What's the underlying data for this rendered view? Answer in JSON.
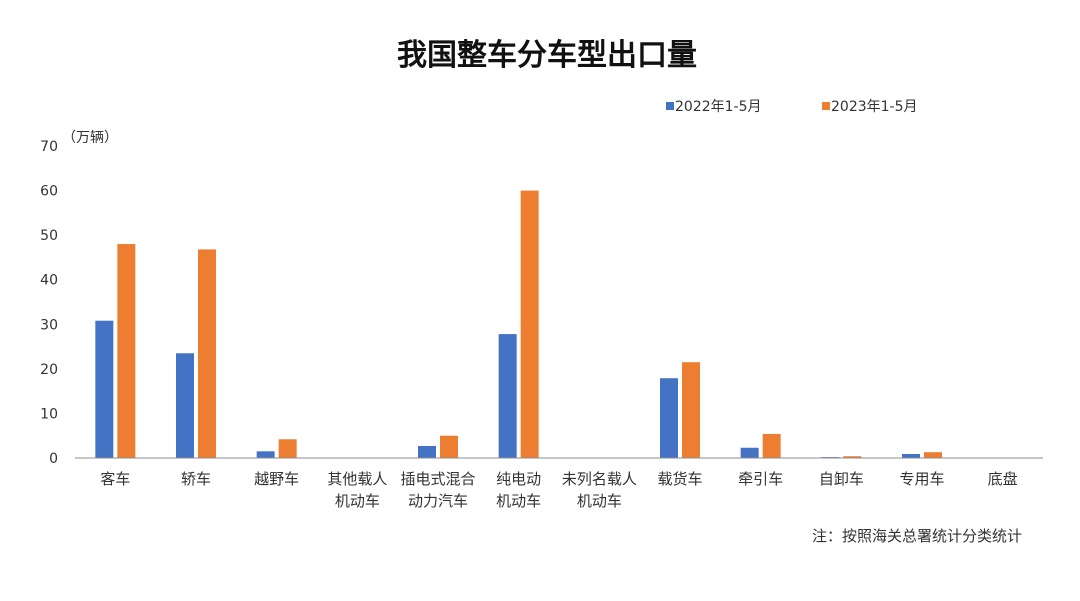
{
  "chart_data": {
    "type": "bar",
    "title": "我国整车分车型出口量",
    "ylabel": "（万辆）",
    "ylim": [
      0,
      70
    ],
    "yticks": [
      0,
      10,
      20,
      30,
      40,
      50,
      60,
      70
    ],
    "legend_position": "top-right",
    "grid": false,
    "categories": [
      [
        "客车"
      ],
      [
        "轿车"
      ],
      [
        "越野车"
      ],
      [
        "其他载人",
        "机动车"
      ],
      [
        "插电式混合",
        "动力汽车"
      ],
      [
        "纯电动",
        "机动车"
      ],
      [
        "未列名载人",
        "机动车"
      ],
      [
        "载货车"
      ],
      [
        "牵引车"
      ],
      [
        "自卸车"
      ],
      [
        "专用车"
      ],
      [
        "底盘"
      ]
    ],
    "series": [
      {
        "name": "2022年1-5月",
        "color": "#4472C4",
        "values": [
          30.8,
          23.5,
          1.5,
          0.1,
          2.7,
          27.8,
          0.1,
          17.9,
          2.3,
          0.2,
          0.9,
          0.1
        ]
      },
      {
        "name": "2023年1-5月",
        "color": "#ED7D31",
        "values": [
          48.0,
          46.8,
          4.2,
          0.1,
          5.0,
          60.0,
          0.1,
          21.5,
          5.4,
          0.4,
          1.3,
          0.1
        ]
      }
    ],
    "note": "注：按照海关总署统计分类统计"
  }
}
